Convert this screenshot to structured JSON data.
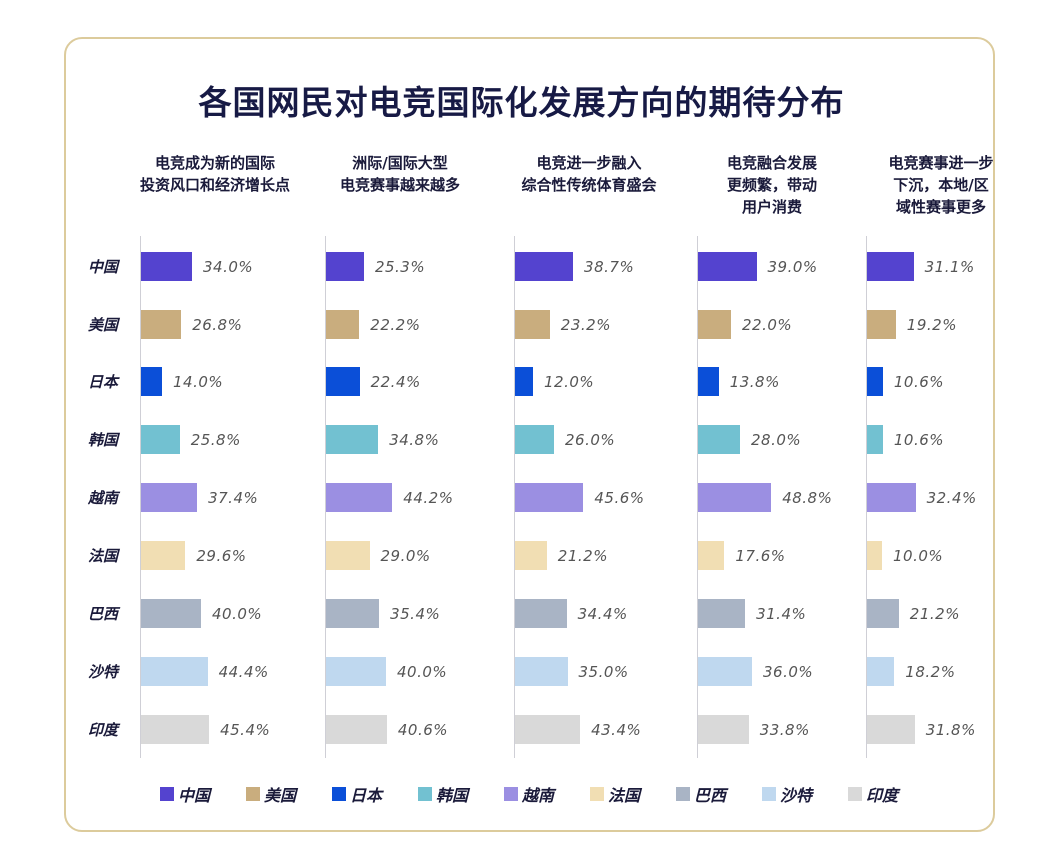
{
  "chart_data": {
    "type": "bar",
    "orientation": "horizontal",
    "title": "各国网民对电竞国际化发展方向的期待分布",
    "categories": [
      "中国",
      "美国",
      "日本",
      "韩国",
      "越南",
      "法国",
      "巴西",
      "沙特",
      "印度"
    ],
    "colors": [
      "#5443cf",
      "#c9ad7e",
      "#0b4fd8",
      "#72c1d1",
      "#9b8fe2",
      "#f1deb3",
      "#a9b4c5",
      "#bfd8ef",
      "#d9d9d9"
    ],
    "unit": "%",
    "panels": [
      {
        "title": "电竞成为新的国际\n投资风口和经济增长点",
        "values": [
          34.0,
          26.8,
          14.0,
          25.8,
          37.4,
          29.6,
          40.0,
          44.4,
          45.4
        ]
      },
      {
        "title": "洲际/国际大型\n电竞赛事越来越多",
        "values": [
          25.3,
          22.2,
          22.4,
          34.8,
          44.2,
          29.0,
          35.4,
          40.0,
          40.6
        ]
      },
      {
        "title": "电竞进一步融入\n综合性传统体育盛会",
        "values": [
          38.7,
          23.2,
          12.0,
          26.0,
          45.6,
          21.2,
          34.4,
          35.0,
          43.4
        ]
      },
      {
        "title": "电竞融合发展\n更频繁，带动\n用户消费",
        "values": [
          39.0,
          22.0,
          13.8,
          28.0,
          48.8,
          17.6,
          31.4,
          36.0,
          33.8
        ]
      },
      {
        "title": "电竞赛事进一步\n下沉，本地/区\n域性赛事更多",
        "values": [
          31.1,
          19.2,
          10.6,
          10.6,
          32.4,
          10.0,
          21.2,
          18.2,
          31.8
        ]
      }
    ],
    "legend": [
      "中国",
      "美国",
      "日本",
      "韩国",
      "越南",
      "法国",
      "巴西",
      "沙特",
      "印度"
    ],
    "legend_position": "bottom",
    "grid": false
  }
}
